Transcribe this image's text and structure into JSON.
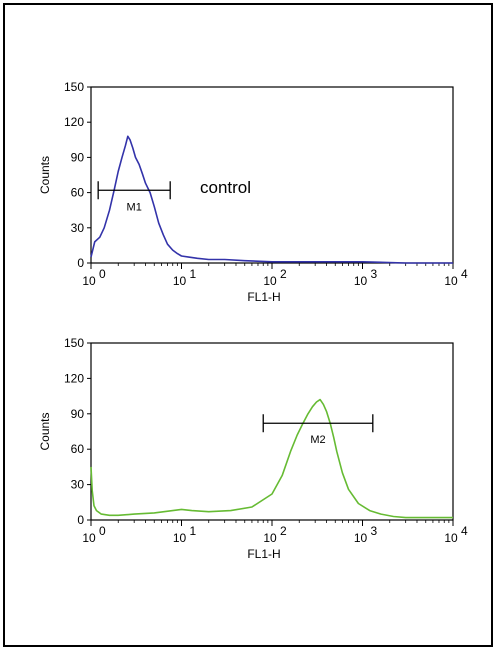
{
  "chart_data": [
    {
      "type": "line",
      "xscale": "log",
      "xlabel": "FL1-H",
      "ylabel": "Counts",
      "xlim": [
        1,
        10000
      ],
      "ylim": [
        0,
        150
      ],
      "xticks": [
        "10",
        "10",
        "10",
        "10",
        "10"
      ],
      "xtick_exponents": [
        "0",
        "1",
        "2",
        "3",
        "4"
      ],
      "yticks": [
        "0",
        "30",
        "60",
        "90",
        "120",
        "150"
      ],
      "annotation": "control",
      "color": "#3333aa",
      "series": [
        {
          "x": [
            1.0,
            1.1,
            1.25,
            1.4,
            1.6,
            1.8,
            2.0,
            2.2,
            2.4,
            2.55,
            2.7,
            2.9,
            3.1,
            3.4,
            3.7,
            4.0,
            4.5,
            5.0,
            5.6,
            6.3,
            7.0,
            8.0,
            9.0,
            10,
            12,
            15,
            20,
            30,
            50,
            100,
            300,
            1000,
            3000,
            10000
          ],
          "y": [
            5,
            18,
            22,
            30,
            45,
            62,
            78,
            90,
            100,
            108,
            105,
            98,
            90,
            84,
            76,
            68,
            60,
            48,
            34,
            24,
            16,
            11,
            8,
            6,
            5,
            4,
            3,
            3,
            2,
            1,
            1,
            1,
            0,
            0
          ]
        }
      ],
      "gates": [
        {
          "label": "M1",
          "x1": 1.2,
          "x2": 7.5,
          "y": 62
        }
      ]
    },
    {
      "type": "line",
      "xscale": "log",
      "xlabel": "FL1-H",
      "ylabel": "Counts",
      "xlim": [
        1,
        10000
      ],
      "ylim": [
        0,
        150
      ],
      "xticks": [
        "10",
        "10",
        "10",
        "10",
        "10"
      ],
      "xtick_exponents": [
        "0",
        "1",
        "2",
        "3",
        "4"
      ],
      "yticks": [
        "0",
        "30",
        "60",
        "90",
        "120",
        "150"
      ],
      "color": "#66bb33",
      "series": [
        {
          "x": [
            1.0,
            1.03,
            1.08,
            1.15,
            1.3,
            1.6,
            2.0,
            3.0,
            5.0,
            8.0,
            10,
            13,
            20,
            35,
            60,
            100,
            130,
            160,
            190,
            220,
            250,
            280,
            310,
            340,
            370,
            400,
            440,
            480,
            520,
            600,
            700,
            900,
            1200,
            1600,
            2200,
            3000,
            5000,
            10000
          ],
          "y": [
            45,
            25,
            12,
            8,
            5,
            4,
            4,
            5,
            6,
            8,
            9,
            8,
            7,
            8,
            11,
            22,
            38,
            58,
            72,
            82,
            90,
            96,
            100,
            102,
            98,
            92,
            82,
            70,
            58,
            40,
            26,
            14,
            8,
            5,
            3,
            2,
            2,
            2
          ]
        }
      ],
      "gates": [
        {
          "label": "M2",
          "x1": 80,
          "x2": 1300,
          "y": 82
        }
      ]
    }
  ]
}
